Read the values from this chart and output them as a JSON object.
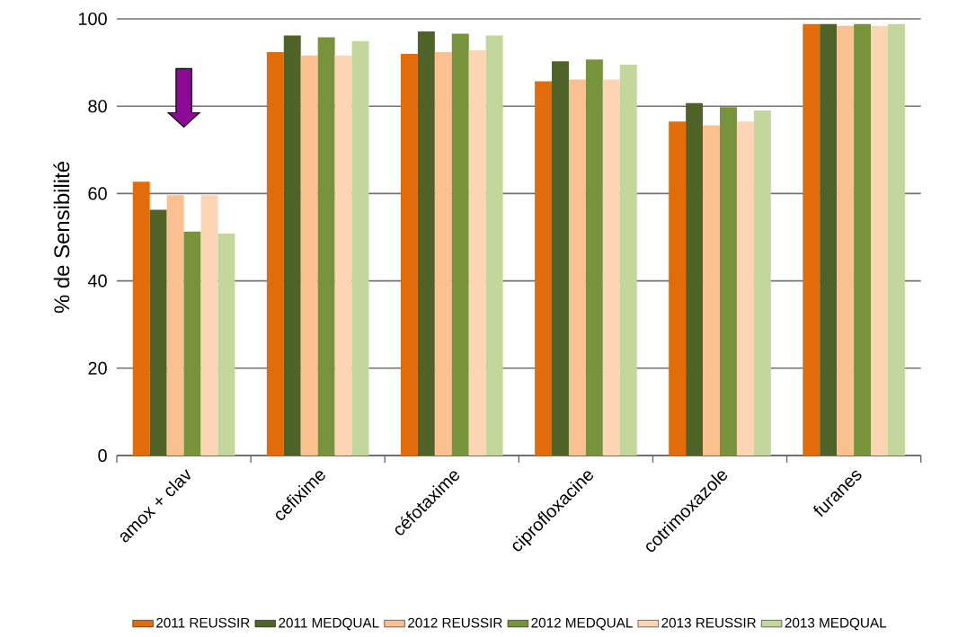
{
  "chart_data": {
    "type": "bar",
    "ylabel": "% de Sensibilité",
    "categories": [
      "amox + clav",
      "cefixime",
      "céfotaxime",
      "ciprofloxacine",
      "cotrimoxazole",
      "furanes"
    ],
    "series": [
      {
        "name": "2011 REUSSIR",
        "color": "#e36c0a",
        "values": [
          62.7,
          92.4,
          92.0,
          85.7,
          76.5,
          98.8
        ]
      },
      {
        "name": "2011 MEDQUAL",
        "color": "#4f6228",
        "values": [
          56.3,
          96.2,
          97.1,
          90.3,
          80.7,
          98.8
        ]
      },
      {
        "name": "2012 REUSSIR",
        "color": "#fac090",
        "values": [
          59.6,
          91.6,
          92.4,
          86.1,
          75.6,
          98.4
        ]
      },
      {
        "name": "2012 MEDQUAL",
        "color": "#77933c",
        "values": [
          51.3,
          95.8,
          96.6,
          90.7,
          79.8,
          98.8
        ]
      },
      {
        "name": "2013 REUSSIR",
        "color": "#fcd5b5",
        "values": [
          59.6,
          91.6,
          92.8,
          86.1,
          76.5,
          98.4
        ]
      },
      {
        "name": "2013 MEDQUAL",
        "color": "#c3d69b",
        "values": [
          50.8,
          94.9,
          96.2,
          89.5,
          79.0,
          98.8
        ]
      }
    ],
    "ylim": [
      0,
      100
    ],
    "yticks": [
      0,
      20,
      40,
      60,
      80,
      100
    ],
    "grid": "y",
    "legend": "bottom"
  }
}
